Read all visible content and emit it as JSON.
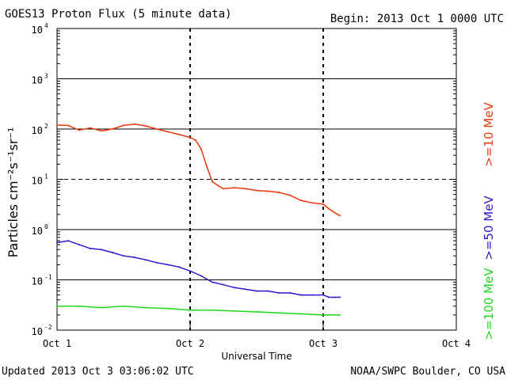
{
  "header": {
    "title": "GOES13 Proton Flux (5 minute data)",
    "begin": "Begin: 2013 Oct 1 0000 UTC"
  },
  "footer": {
    "updated": "Updated 2013 Oct  3 03:06:02 UTC",
    "credit": "NOAA/SWPC Boulder, CO USA"
  },
  "chart_data": {
    "type": "line",
    "title": "GOES13 Proton Flux (5 minute data)",
    "xlabel": "Universal Time",
    "ylabel": "Particles cm⁻²s⁻¹sr⁻¹",
    "y_scale": "log",
    "ylim": [
      0.01,
      10000
    ],
    "xlim": [
      "2013-10-01 00:00",
      "2013-10-04 00:00"
    ],
    "x_ticks": [
      "Oct 1",
      "Oct 2",
      "Oct 3",
      "Oct 4"
    ],
    "y_ticks": [
      {
        "base": "10",
        "exp": "-2",
        "value": 0.01
      },
      {
        "base": "10",
        "exp": "-1",
        "value": 0.1
      },
      {
        "base": "10",
        "exp": "0",
        "value": 1
      },
      {
        "base": "10",
        "exp": "1",
        "value": 10
      },
      {
        "base": "10",
        "exp": "2",
        "value": 100
      },
      {
        "base": "10",
        "exp": "3",
        "value": 1000
      },
      {
        "base": "10",
        "exp": "4",
        "value": 10000
      }
    ],
    "horizontal_lines": [
      {
        "value": 1000,
        "style": "solid"
      },
      {
        "value": 100,
        "style": "solid"
      },
      {
        "value": 10,
        "style": "dashed"
      },
      {
        "value": 1,
        "style": "solid"
      },
      {
        "value": 0.1,
        "style": "solid"
      }
    ],
    "day_markers": [
      "2013-10-02 00:00",
      "2013-10-03 00:00"
    ],
    "legend_placement": "right-vertical",
    "series": [
      {
        "name": ">=10 MeV",
        "color": "#e8380d",
        "x": [
          "2013-10-01 00:00",
          "2013-10-01 02:00",
          "2013-10-01 04:00",
          "2013-10-01 06:00",
          "2013-10-01 08:00",
          "2013-10-01 10:00",
          "2013-10-01 12:00",
          "2013-10-01 14:00",
          "2013-10-01 16:00",
          "2013-10-01 18:00",
          "2013-10-01 20:00",
          "2013-10-01 22:00",
          "2013-10-02 00:00",
          "2013-10-02 01:00",
          "2013-10-02 02:00",
          "2013-10-02 03:00",
          "2013-10-02 04:00",
          "2013-10-02 05:00",
          "2013-10-02 06:00",
          "2013-10-02 08:00",
          "2013-10-02 10:00",
          "2013-10-02 12:00",
          "2013-10-02 14:00",
          "2013-10-02 16:00",
          "2013-10-02 18:00",
          "2013-10-02 20:00",
          "2013-10-02 22:00",
          "2013-10-03 00:00",
          "2013-10-03 01:00",
          "2013-10-03 02:00",
          "2013-10-03 03:00"
        ],
        "values": [
          120,
          118,
          95,
          105,
          92,
          100,
          118,
          125,
          115,
          100,
          88,
          78,
          68,
          60,
          40,
          18,
          9,
          7.5,
          6.5,
          6.8,
          6.5,
          6.0,
          5.8,
          5.5,
          4.8,
          3.8,
          3.4,
          3.2,
          2.6,
          2.2,
          1.9
        ]
      },
      {
        "name": ">=50 MeV",
        "color": "#2d17cc",
        "x": [
          "2013-10-01 00:00",
          "2013-10-01 02:00",
          "2013-10-01 04:00",
          "2013-10-01 06:00",
          "2013-10-01 08:00",
          "2013-10-01 10:00",
          "2013-10-01 12:00",
          "2013-10-01 14:00",
          "2013-10-01 16:00",
          "2013-10-01 18:00",
          "2013-10-01 20:00",
          "2013-10-01 22:00",
          "2013-10-02 00:00",
          "2013-10-02 02:00",
          "2013-10-02 04:00",
          "2013-10-02 06:00",
          "2013-10-02 08:00",
          "2013-10-02 10:00",
          "2013-10-02 12:00",
          "2013-10-02 14:00",
          "2013-10-02 16:00",
          "2013-10-02 18:00",
          "2013-10-02 20:00",
          "2013-10-02 22:00",
          "2013-10-03 00:00",
          "2013-10-03 01:00",
          "2013-10-03 02:00",
          "2013-10-03 03:00"
        ],
        "values": [
          0.55,
          0.6,
          0.5,
          0.42,
          0.4,
          0.35,
          0.3,
          0.28,
          0.25,
          0.22,
          0.2,
          0.18,
          0.15,
          0.12,
          0.09,
          0.08,
          0.07,
          0.065,
          0.06,
          0.06,
          0.055,
          0.055,
          0.05,
          0.05,
          0.05,
          0.045,
          0.045,
          0.045
        ]
      },
      {
        "name": ">=100 MeV",
        "color": "#1fd81f",
        "x": [
          "2013-10-01 00:00",
          "2013-10-01 04:00",
          "2013-10-01 08:00",
          "2013-10-01 12:00",
          "2013-10-01 16:00",
          "2013-10-01 20:00",
          "2013-10-02 00:00",
          "2013-10-02 04:00",
          "2013-10-02 08:00",
          "2013-10-02 12:00",
          "2013-10-02 16:00",
          "2013-10-02 20:00",
          "2013-10-03 00:00",
          "2013-10-03 03:00"
        ],
        "values": [
          0.03,
          0.03,
          0.028,
          0.03,
          0.028,
          0.027,
          0.025,
          0.025,
          0.024,
          0.023,
          0.022,
          0.021,
          0.02,
          0.02
        ]
      }
    ]
  }
}
